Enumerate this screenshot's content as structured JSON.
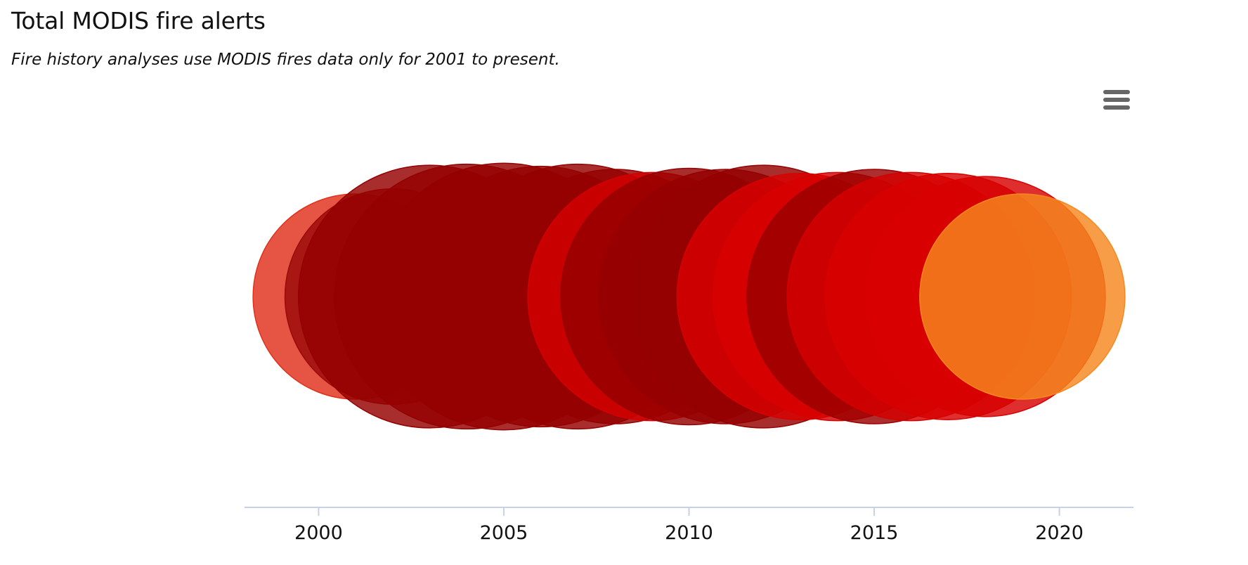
{
  "header": {
    "title": "Total MODIS fire alerts",
    "subtitle": "Fire history analyses use MODIS fires data only for 2001 to present."
  },
  "menu": {
    "icon": "hamburger-menu-icon"
  },
  "chart_data": {
    "type": "scatter",
    "title": "Total MODIS fire alerts",
    "subtitle": "Fire history analyses use MODIS fires data only for 2001 to present.",
    "xlabel": "",
    "ylabel": "",
    "xlim": [
      1998,
      2022
    ],
    "xticks": [
      "2000",
      "2005",
      "2010",
      "2015",
      "2020"
    ],
    "grid": false,
    "points": [
      {
        "x": 2001,
        "size": 1.0,
        "color": "#e0301a"
      },
      {
        "x": 2002,
        "size": 1.05,
        "color": "#9a0a08"
      },
      {
        "x": 2003,
        "size": 1.28,
        "color": "#950000"
      },
      {
        "x": 2004,
        "size": 1.29,
        "color": "#950000"
      },
      {
        "x": 2005,
        "size": 1.3,
        "color": "#950000"
      },
      {
        "x": 2006,
        "size": 1.27,
        "color": "#950000"
      },
      {
        "x": 2007,
        "size": 1.29,
        "color": "#950000"
      },
      {
        "x": 2008,
        "size": 1.24,
        "color": "#950000"
      },
      {
        "x": 2009,
        "size": 1.21,
        "color": "#d40000"
      },
      {
        "x": 2010,
        "size": 1.25,
        "color": "#950000"
      },
      {
        "x": 2011,
        "size": 1.24,
        "color": "#950000"
      },
      {
        "x": 2012,
        "size": 1.28,
        "color": "#950000"
      },
      {
        "x": 2013,
        "size": 1.2,
        "color": "#d80000"
      },
      {
        "x": 2014,
        "size": 1.21,
        "color": "#d80000"
      },
      {
        "x": 2015,
        "size": 1.24,
        "color": "#9a0000"
      },
      {
        "x": 2016,
        "size": 1.21,
        "color": "#d40000"
      },
      {
        "x": 2017,
        "size": 1.2,
        "color": "#d80000"
      },
      {
        "x": 2018,
        "size": 1.17,
        "color": "#d80000"
      },
      {
        "x": 2019,
        "size": 1.0,
        "color": "#f7871e"
      }
    ]
  }
}
